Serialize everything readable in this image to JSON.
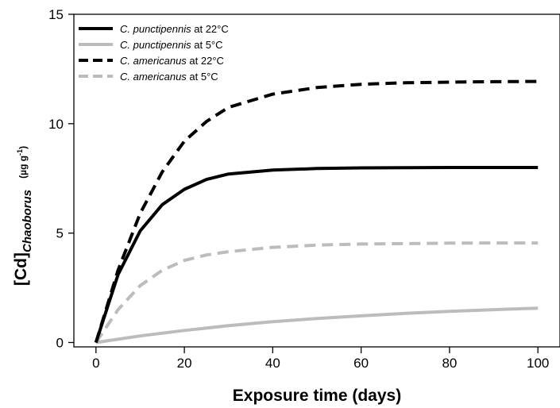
{
  "chart_data": {
    "type": "line",
    "xlabel": "Exposure time (days)",
    "ylabel": {
      "main": "[Cd]",
      "subscript": "Chaoborus",
      "unit_prefix": "(µg g",
      "unit_sup": "-1",
      "unit_suffix": ")"
    },
    "xlim": [
      -5,
      105
    ],
    "ylim": [
      -0.2,
      15
    ],
    "xticks": [
      0,
      20,
      40,
      60,
      80,
      100
    ],
    "yticks": [
      0,
      5,
      10,
      15
    ],
    "grid": false,
    "legend_position": "top-left",
    "series": [
      {
        "name": "at 22°C",
        "name_italic": "C. punctipennis",
        "color": "#000000",
        "style": "solid",
        "x": [
          0,
          5,
          10,
          15,
          20,
          25,
          30,
          40,
          50,
          60,
          70,
          80,
          90,
          100
        ],
        "y": [
          0,
          3.1,
          5.1,
          6.3,
          7.0,
          7.45,
          7.7,
          7.88,
          7.95,
          7.98,
          7.99,
          8.0,
          8.0,
          8.0
        ]
      },
      {
        "name": "at  5°C",
        "name_italic": "C. punctipennis",
        "color": "#bcbcbc",
        "style": "solid",
        "x": [
          0,
          10,
          20,
          30,
          40,
          50,
          60,
          70,
          80,
          90,
          100
        ],
        "y": [
          0,
          0.3,
          0.55,
          0.77,
          0.95,
          1.1,
          1.22,
          1.33,
          1.42,
          1.5,
          1.57
        ]
      },
      {
        "name": "at 22°C",
        "name_italic": "C. americanus",
        "color": "#000000",
        "style": "dashed",
        "x": [
          0,
          5,
          10,
          15,
          20,
          25,
          30,
          40,
          50,
          60,
          70,
          80,
          90,
          100
        ],
        "y": [
          0,
          3.3,
          5.9,
          7.8,
          9.2,
          10.1,
          10.75,
          11.35,
          11.65,
          11.8,
          11.87,
          11.9,
          11.92,
          11.93
        ]
      },
      {
        "name": "at 5°C",
        "name_italic": "C. americanus",
        "color": "#bcbcbc",
        "style": "dashed",
        "x": [
          0,
          5,
          10,
          15,
          20,
          25,
          30,
          40,
          50,
          60,
          70,
          80,
          90,
          100
        ],
        "y": [
          0,
          1.5,
          2.6,
          3.3,
          3.75,
          4.0,
          4.15,
          4.35,
          4.45,
          4.5,
          4.52,
          4.54,
          4.55,
          4.55
        ]
      }
    ]
  }
}
